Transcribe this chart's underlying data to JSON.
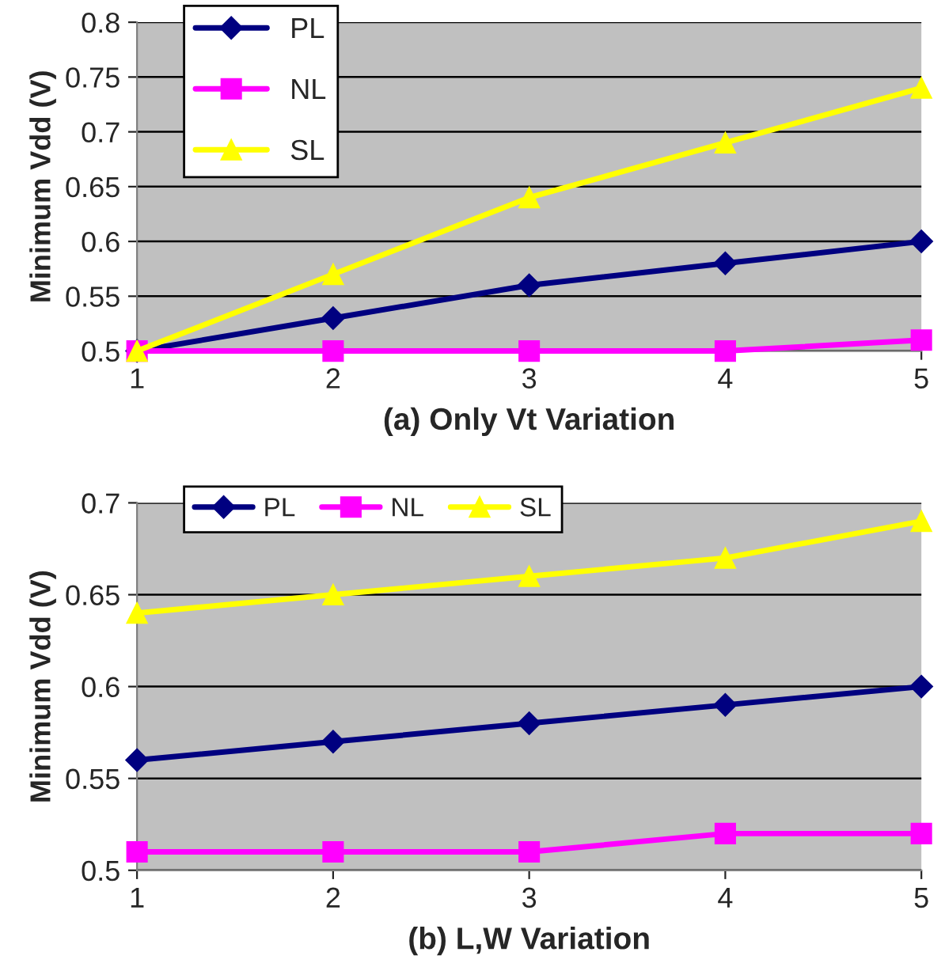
{
  "chart_data": [
    {
      "type": "line",
      "xlabel": "(a) Only Vt Variation",
      "ylabel": "Minimum Vdd (V)",
      "categories": [
        "1",
        "2",
        "3",
        "4",
        "5"
      ],
      "ylim": [
        0.5,
        0.8
      ],
      "yticks": [
        0.5,
        0.55,
        0.6,
        0.65,
        0.7,
        0.75,
        0.8
      ],
      "grid": "y",
      "legend": "top left",
      "series": [
        {
          "name": "PL",
          "color": "#000080",
          "marker": "diamond",
          "values": [
            0.5,
            0.53,
            0.56,
            0.58,
            0.6
          ]
        },
        {
          "name": "NL",
          "color": "#ff00ff",
          "marker": "square",
          "values": [
            0.5,
            0.5,
            0.5,
            0.5,
            0.51
          ]
        },
        {
          "name": "SL",
          "color": "#ffff00",
          "marker": "triangle",
          "values": [
            0.5,
            0.57,
            0.64,
            0.69,
            0.74
          ]
        }
      ]
    },
    {
      "type": "line",
      "xlabel": "(b) L,W Variation",
      "ylabel": "Minimum Vdd (V)",
      "categories": [
        "1",
        "2",
        "3",
        "4",
        "5"
      ],
      "ylim": [
        0.5,
        0.7
      ],
      "yticks": [
        0.5,
        0.55,
        0.6,
        0.65,
        0.7
      ],
      "grid": "y",
      "legend": "top",
      "series": [
        {
          "name": "PL",
          "color": "#000080",
          "marker": "diamond",
          "values": [
            0.56,
            0.57,
            0.58,
            0.59,
            0.6
          ]
        },
        {
          "name": "NL",
          "color": "#ff00ff",
          "marker": "square",
          "values": [
            0.51,
            0.51,
            0.51,
            0.52,
            0.52
          ]
        },
        {
          "name": "SL",
          "color": "#ffff00",
          "marker": "triangle",
          "values": [
            0.64,
            0.65,
            0.66,
            0.67,
            0.69
          ]
        }
      ]
    }
  ]
}
